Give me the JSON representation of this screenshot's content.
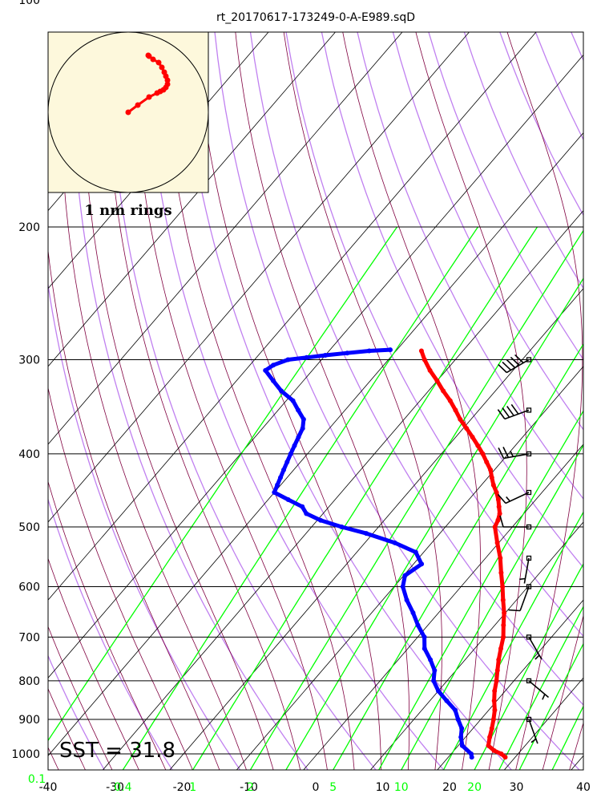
{
  "chart_data": {
    "type": "skew-t",
    "title": "rt_20170617-173249-0-A-E989.sqD",
    "annotation": "SST = 31.8",
    "hodograph_label": "1 nm rings",
    "pressure_ticks": [
      "100",
      "200",
      "300",
      "400",
      "500",
      "600",
      "700",
      "800",
      "900",
      "1000"
    ],
    "pressure_values": [
      100,
      200,
      300,
      400,
      500,
      600,
      700,
      800,
      900,
      1000
    ],
    "ylim": [
      1050,
      100
    ],
    "y_scale": "log",
    "temperature_ticks": [
      "-40",
      "-30",
      "-20",
      "-10",
      "0",
      "10",
      "20",
      "30",
      "40"
    ],
    "temperature_values": [
      -40,
      -30,
      -20,
      -10,
      0,
      10,
      20,
      30,
      40
    ],
    "xlim": [
      -40,
      40
    ],
    "mixing_ratio_ticks": [
      "0.1",
      "0.4",
      "1",
      "2",
      "5",
      "10",
      "20"
    ],
    "mixing_ratio_values": [
      0.1,
      0.4,
      1,
      2,
      5,
      10,
      20
    ],
    "grid": true,
    "colors": {
      "temperature": "#ff0000",
      "dewpoint": "#0000ff",
      "mixing_ratio": "#00ff00",
      "dry_adiabat": "#c080f0",
      "moist_adiabat": "#800040",
      "isotherm": "#000000",
      "hodograph_bg": "#fdf8dc",
      "wind_barb": "#000000"
    },
    "temperature_profile": {
      "p": [
        1010,
        1000,
        990,
        975,
        950,
        925,
        900,
        875,
        850,
        825,
        800,
        775,
        750,
        725,
        700,
        675,
        650,
        625,
        600,
        575,
        550,
        525,
        500,
        490,
        480,
        470,
        460,
        450,
        440,
        430,
        420,
        410,
        400,
        390,
        380,
        370,
        360,
        350,
        340,
        330,
        320,
        310,
        300,
        292
      ],
      "t": [
        28.5,
        27.5,
        26.0,
        24.5,
        23.6,
        22.8,
        21.9,
        20.9,
        19.6,
        18.4,
        17.4,
        16.2,
        15.0,
        13.9,
        12.8,
        11.3,
        9.8,
        8.0,
        6.2,
        4.2,
        2.2,
        -0.2,
        -2.6,
        -3.0,
        -3.6,
        -4.6,
        -5.6,
        -6.8,
        -8.2,
        -9.4,
        -10.6,
        -12.2,
        -13.8,
        -15.6,
        -17.5,
        -19.5,
        -21.6,
        -23.5,
        -25.5,
        -27.8,
        -30.0,
        -32.4,
        -34.6,
        -36.2
      ]
    },
    "dewpoint_profile": {
      "p": [
        1010,
        1000,
        975,
        950,
        925,
        900,
        875,
        850,
        825,
        800,
        775,
        750,
        725,
        700,
        675,
        650,
        625,
        600,
        580,
        560,
        540,
        525,
        510,
        500,
        490,
        480,
        470,
        460,
        450,
        440,
        430,
        420,
        410,
        400,
        390,
        380,
        370,
        360,
        350,
        340,
        330,
        320,
        310,
        305,
        300,
        298,
        296,
        294,
        292,
        291
      ],
      "t": [
        23.5,
        23.0,
        20.6,
        19.3,
        18.3,
        16.6,
        15.0,
        12.5,
        10.0,
        8.0,
        6.8,
        4.8,
        2.5,
        1.0,
        -1.5,
        -3.8,
        -6.4,
        -8.7,
        -9.8,
        -8.8,
        -11.2,
        -15.5,
        -21.0,
        -25.5,
        -29.5,
        -32.5,
        -34.0,
        -37.0,
        -40.0,
        -40.5,
        -41.0,
        -41.5,
        -42.0,
        -42.5,
        -43.0,
        -43.5,
        -44.0,
        -45.0,
        -47.0,
        -49.0,
        -52.0,
        -54.5,
        -57.0,
        -56.5,
        -55.0,
        -52.5,
        -50.0,
        -47.0,
        -44.0,
        -41.0
      ]
    },
    "wind_barbs": [
      {
        "p": 300,
        "direction": 240,
        "speed": 50
      },
      {
        "p": 350,
        "direction": 250,
        "speed": 40
      },
      {
        "p": 400,
        "direction": 260,
        "speed": 25
      },
      {
        "p": 450,
        "direction": 245,
        "speed": 15
      },
      {
        "p": 500,
        "direction": 270,
        "speed": 10
      },
      {
        "p": 550,
        "direction": 190,
        "speed": 5
      },
      {
        "p": 600,
        "direction": 200,
        "speed": 10
      },
      {
        "p": 700,
        "direction": 150,
        "speed": 5
      },
      {
        "p": 800,
        "direction": 130,
        "speed": 5
      },
      {
        "p": 900,
        "direction": 160,
        "speed": 5
      }
    ],
    "hodograph": {
      "ring_nm": 1,
      "u": [
        0.0,
        0.12,
        0.26,
        0.36,
        0.4,
        0.44,
        0.47,
        0.49,
        0.49,
        0.47,
        0.45,
        0.42,
        0.38,
        0.31,
        0.26,
        0.25
      ],
      "v": [
        0.0,
        0.09,
        0.19,
        0.24,
        0.26,
        0.28,
        0.31,
        0.35,
        0.4,
        0.45,
        0.5,
        0.56,
        0.62,
        0.66,
        0.7,
        0.71
      ]
    }
  }
}
